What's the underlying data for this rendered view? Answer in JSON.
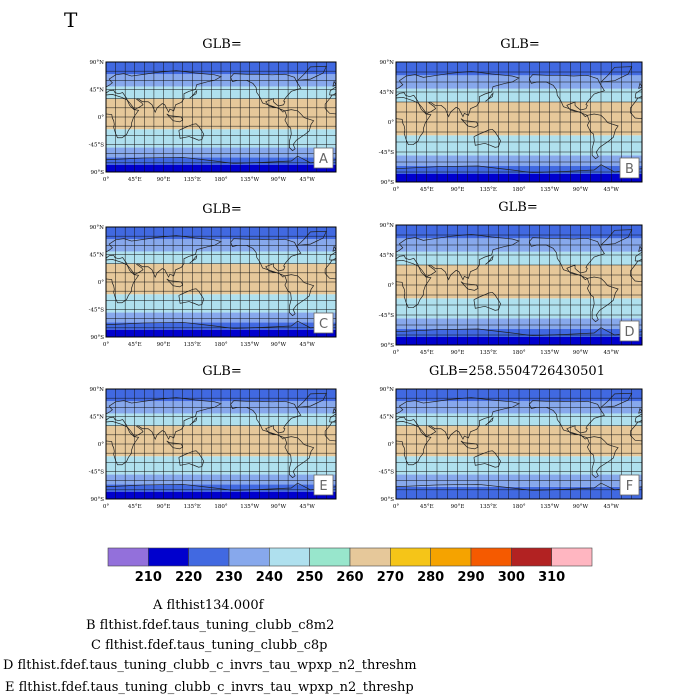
{
  "figure": {
    "title": "T"
  },
  "chart_data": [
    {
      "type": "heatmap",
      "panel": "A",
      "title": "GLB=",
      "xticks": [
        "0°",
        "45°E",
        "90°E",
        "135°E",
        "180°",
        "135°W",
        "90°W",
        "45°W"
      ],
      "yticks": [
        "90°N",
        "45°N",
        "0°",
        "-45°S",
        "90°S"
      ],
      "xlim": [
        0,
        360
      ],
      "ylim": [
        -90,
        90
      ],
      "bands": [
        {
          "lat": [
            -90,
            -78
          ],
          "level": 220
        },
        {
          "lat": [
            -78,
            -66
          ],
          "level": 230
        },
        {
          "lat": [
            -66,
            -50
          ],
          "level": 240
        },
        {
          "lat": [
            -50,
            -20
          ],
          "level": 250
        },
        {
          "lat": [
            -20,
            30
          ],
          "level": 260
        },
        {
          "lat": [
            30,
            50
          ],
          "level": 250
        },
        {
          "lat": [
            50,
            70
          ],
          "level": 240
        },
        {
          "lat": [
            70,
            90
          ],
          "level": 230
        }
      ]
    },
    {
      "type": "heatmap",
      "panel": "B",
      "title": "GLB=",
      "xticks": [
        "0°",
        "45°E",
        "90°E",
        "135°E",
        "180°",
        "135°W",
        "90°W",
        "45°W"
      ],
      "yticks": [
        "90°N",
        "45°N",
        "0°",
        "-45°S",
        "90°S"
      ],
      "xlim": [
        0,
        360
      ],
      "ylim": [
        -90,
        90
      ],
      "bands": [
        {
          "lat": [
            -90,
            -78
          ],
          "level": 220
        },
        {
          "lat": [
            -78,
            -66
          ],
          "level": 230
        },
        {
          "lat": [
            -66,
            -50
          ],
          "level": 240
        },
        {
          "lat": [
            -50,
            -20
          ],
          "level": 250
        },
        {
          "lat": [
            -20,
            30
          ],
          "level": 260
        },
        {
          "lat": [
            30,
            50
          ],
          "level": 250
        },
        {
          "lat": [
            50,
            70
          ],
          "level": 240
        },
        {
          "lat": [
            70,
            90
          ],
          "level": 230
        }
      ]
    },
    {
      "type": "heatmap",
      "panel": "C",
      "title": "GLB=",
      "xticks": [
        "0°",
        "45°E",
        "90°E",
        "135°E",
        "180°",
        "135°W",
        "90°W",
        "45°W"
      ],
      "yticks": [
        "90°N",
        "45°N",
        "0°",
        "-45°S",
        "90°S"
      ],
      "xlim": [
        0,
        360
      ],
      "ylim": [
        -90,
        90
      ],
      "bands": [
        {
          "lat": [
            -90,
            -78
          ],
          "level": 220
        },
        {
          "lat": [
            -78,
            -66
          ],
          "level": 230
        },
        {
          "lat": [
            -66,
            -50
          ],
          "level": 240
        },
        {
          "lat": [
            -50,
            -20
          ],
          "level": 250
        },
        {
          "lat": [
            -20,
            30
          ],
          "level": 260
        },
        {
          "lat": [
            30,
            50
          ],
          "level": 250
        },
        {
          "lat": [
            50,
            70
          ],
          "level": 240
        },
        {
          "lat": [
            70,
            90
          ],
          "level": 230
        }
      ]
    },
    {
      "type": "heatmap",
      "panel": "D",
      "title": "GLB=",
      "xticks": [
        "0°",
        "45°E",
        "90°E",
        "135°E",
        "180°",
        "135°W",
        "90°W",
        "45°W"
      ],
      "yticks": [
        "90°N",
        "45°N",
        "0°",
        "-45°S",
        "90°S"
      ],
      "xlim": [
        0,
        360
      ],
      "ylim": [
        -90,
        90
      ],
      "bands": [
        {
          "lat": [
            -90,
            -78
          ],
          "level": 220
        },
        {
          "lat": [
            -78,
            -66
          ],
          "level": 230
        },
        {
          "lat": [
            -66,
            -50
          ],
          "level": 240
        },
        {
          "lat": [
            -50,
            -20
          ],
          "level": 250
        },
        {
          "lat": [
            -20,
            30
          ],
          "level": 260
        },
        {
          "lat": [
            30,
            50
          ],
          "level": 250
        },
        {
          "lat": [
            50,
            70
          ],
          "level": 240
        },
        {
          "lat": [
            70,
            90
          ],
          "level": 230
        }
      ]
    },
    {
      "type": "heatmap",
      "panel": "E",
      "title": "GLB=",
      "xticks": [
        "0°",
        "45°E",
        "90°E",
        "135°E",
        "180°",
        "135°W",
        "90°W",
        "45°W"
      ],
      "yticks": [
        "90°N",
        "45°N",
        "0°",
        "-45°S",
        "90°S"
      ],
      "xlim": [
        0,
        360
      ],
      "ylim": [
        -90,
        90
      ],
      "bands": [
        {
          "lat": [
            -90,
            -78
          ],
          "level": 220
        },
        {
          "lat": [
            -78,
            -66
          ],
          "level": 230
        },
        {
          "lat": [
            -66,
            -50
          ],
          "level": 240
        },
        {
          "lat": [
            -50,
            -20
          ],
          "level": 250
        },
        {
          "lat": [
            -20,
            30
          ],
          "level": 260
        },
        {
          "lat": [
            30,
            50
          ],
          "level": 250
        },
        {
          "lat": [
            50,
            70
          ],
          "level": 240
        },
        {
          "lat": [
            70,
            90
          ],
          "level": 230
        }
      ]
    },
    {
      "type": "heatmap",
      "panel": "F",
      "title": "GLB=258.5504726430501",
      "xticks": [
        "0°",
        "45°E",
        "90°E",
        "135°E",
        "180°",
        "135°W",
        "90°W",
        "45°W"
      ],
      "yticks": [
        "90°N",
        "45°N",
        "0°",
        "-45°S",
        "90°S"
      ],
      "xlim": [
        0,
        360
      ],
      "ylim": [
        -90,
        90
      ],
      "bands": [
        {
          "lat": [
            -90,
            -70
          ],
          "level": 230
        },
        {
          "lat": [
            -70,
            -50
          ],
          "level": 240
        },
        {
          "lat": [
            -50,
            -20
          ],
          "level": 250
        },
        {
          "lat": [
            -20,
            30
          ],
          "level": 260
        },
        {
          "lat": [
            30,
            50
          ],
          "level": 250
        },
        {
          "lat": [
            50,
            70
          ],
          "level": 240
        },
        {
          "lat": [
            70,
            90
          ],
          "level": 230
        }
      ]
    }
  ],
  "colorbar": {
    "levels": [
      "210",
      "220",
      "230",
      "240",
      "250",
      "260",
      "270",
      "280",
      "290",
      "300",
      "310"
    ],
    "colors": [
      "#9370db",
      "#0000cd",
      "#4169e1",
      "#87a8ec",
      "#afe0ee",
      "#98e6cc",
      "#e6c89a",
      "#f5c518",
      "#f5a300",
      "#f55a00",
      "#b22222",
      "#ffb6c1"
    ],
    "band_colors": {
      "220": "#0000cd",
      "230": "#4169e1",
      "240": "#87a8ec",
      "250": "#afe0ee",
      "260": "#e6c89a"
    }
  },
  "legend": [
    "A  flthist134.000f",
    "B  flthist.fdef.taus_tuning_clubb_c8m2",
    "C  flthist.fdef.taus_tuning_clubb_c8p",
    "D  flthist.fdef.taus_tuning_clubb_c_invrs_tau_wpxp_n2_threshm",
    "E  flthist.fdef.taus_tuning_clubb_c_invrs_tau_wpxp_n2_threshp"
  ]
}
